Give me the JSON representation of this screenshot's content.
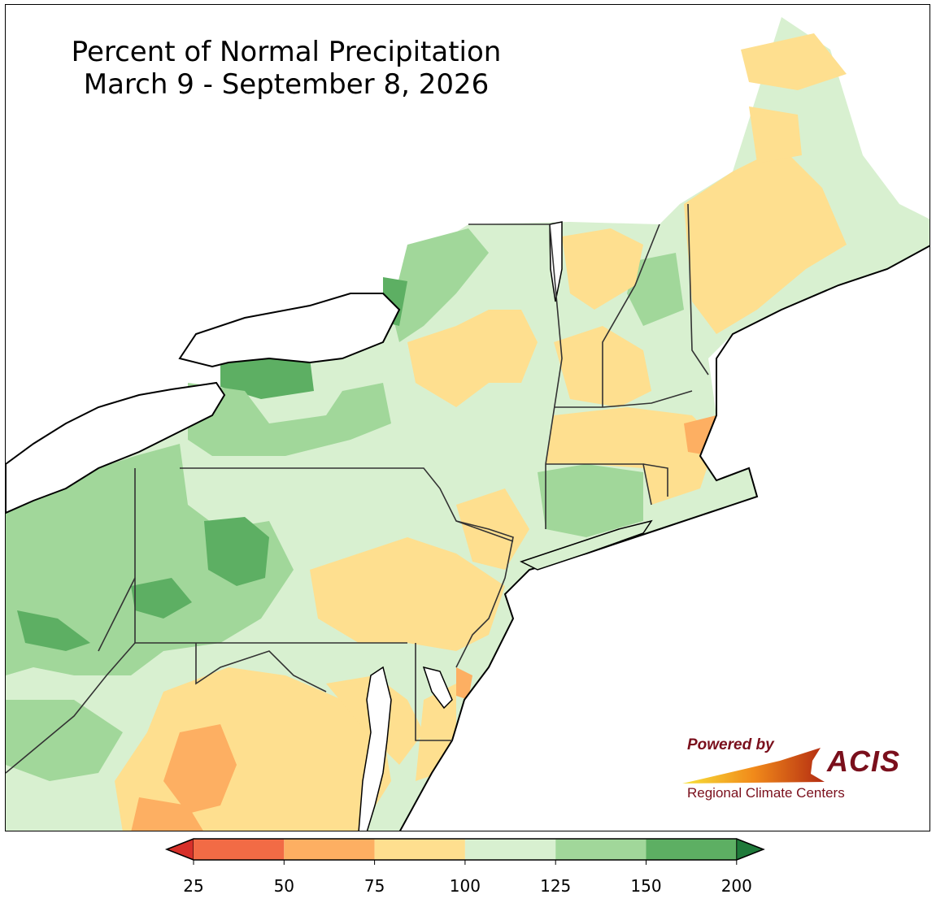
{
  "title": {
    "line1": "Percent of Normal Precipitation",
    "line2": "March 9 - September 8, 2026"
  },
  "logo": {
    "powered_by": "Powered by",
    "name": "ACIS",
    "subtitle": "Regional Climate Centers"
  },
  "legend": {
    "tick_labels": [
      "25",
      "50",
      "75",
      "100",
      "125",
      "150",
      "200"
    ],
    "bins": [
      {
        "min": 25,
        "max": 50,
        "color": "#f26b45"
      },
      {
        "min": 50,
        "max": 75,
        "color": "#fdaf62"
      },
      {
        "min": 75,
        "max": 100,
        "color": "#fedf8f"
      },
      {
        "min": 100,
        "max": 125,
        "color": "#d8f0d0"
      },
      {
        "min": 125,
        "max": 150,
        "color": "#a1d79a"
      },
      {
        "min": 150,
        "max": 200,
        "color": "#5daf63"
      }
    ],
    "under_color": "#d7302a",
    "over_color": "#1f7a3a"
  },
  "colors": {
    "lake": "#ffffff",
    "ocean": "#ffffff",
    "border": "#222222",
    "county": "#9aa79a"
  }
}
